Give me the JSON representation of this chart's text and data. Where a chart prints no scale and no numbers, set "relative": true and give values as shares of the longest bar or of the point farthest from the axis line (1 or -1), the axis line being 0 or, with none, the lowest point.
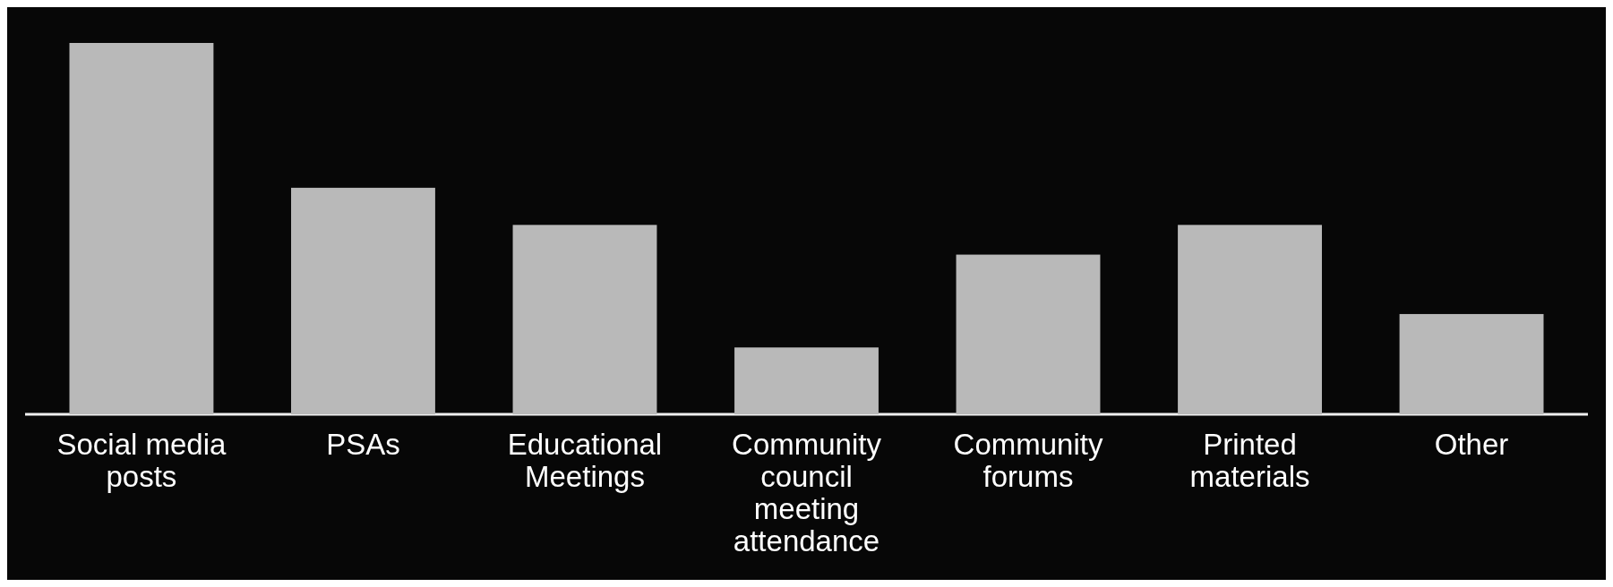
{
  "chart_data": {
    "type": "bar",
    "relative": true,
    "categories": [
      "Social media posts",
      "PSAs",
      "Educational Meetings",
      "Community council meeting attendance",
      "Community forums",
      "Printed materials",
      "Other"
    ],
    "values": [
      1,
      0.61,
      0.51,
      0.18,
      0.43,
      0.51,
      0.27
    ],
    "color": "#b9b9b9"
  }
}
